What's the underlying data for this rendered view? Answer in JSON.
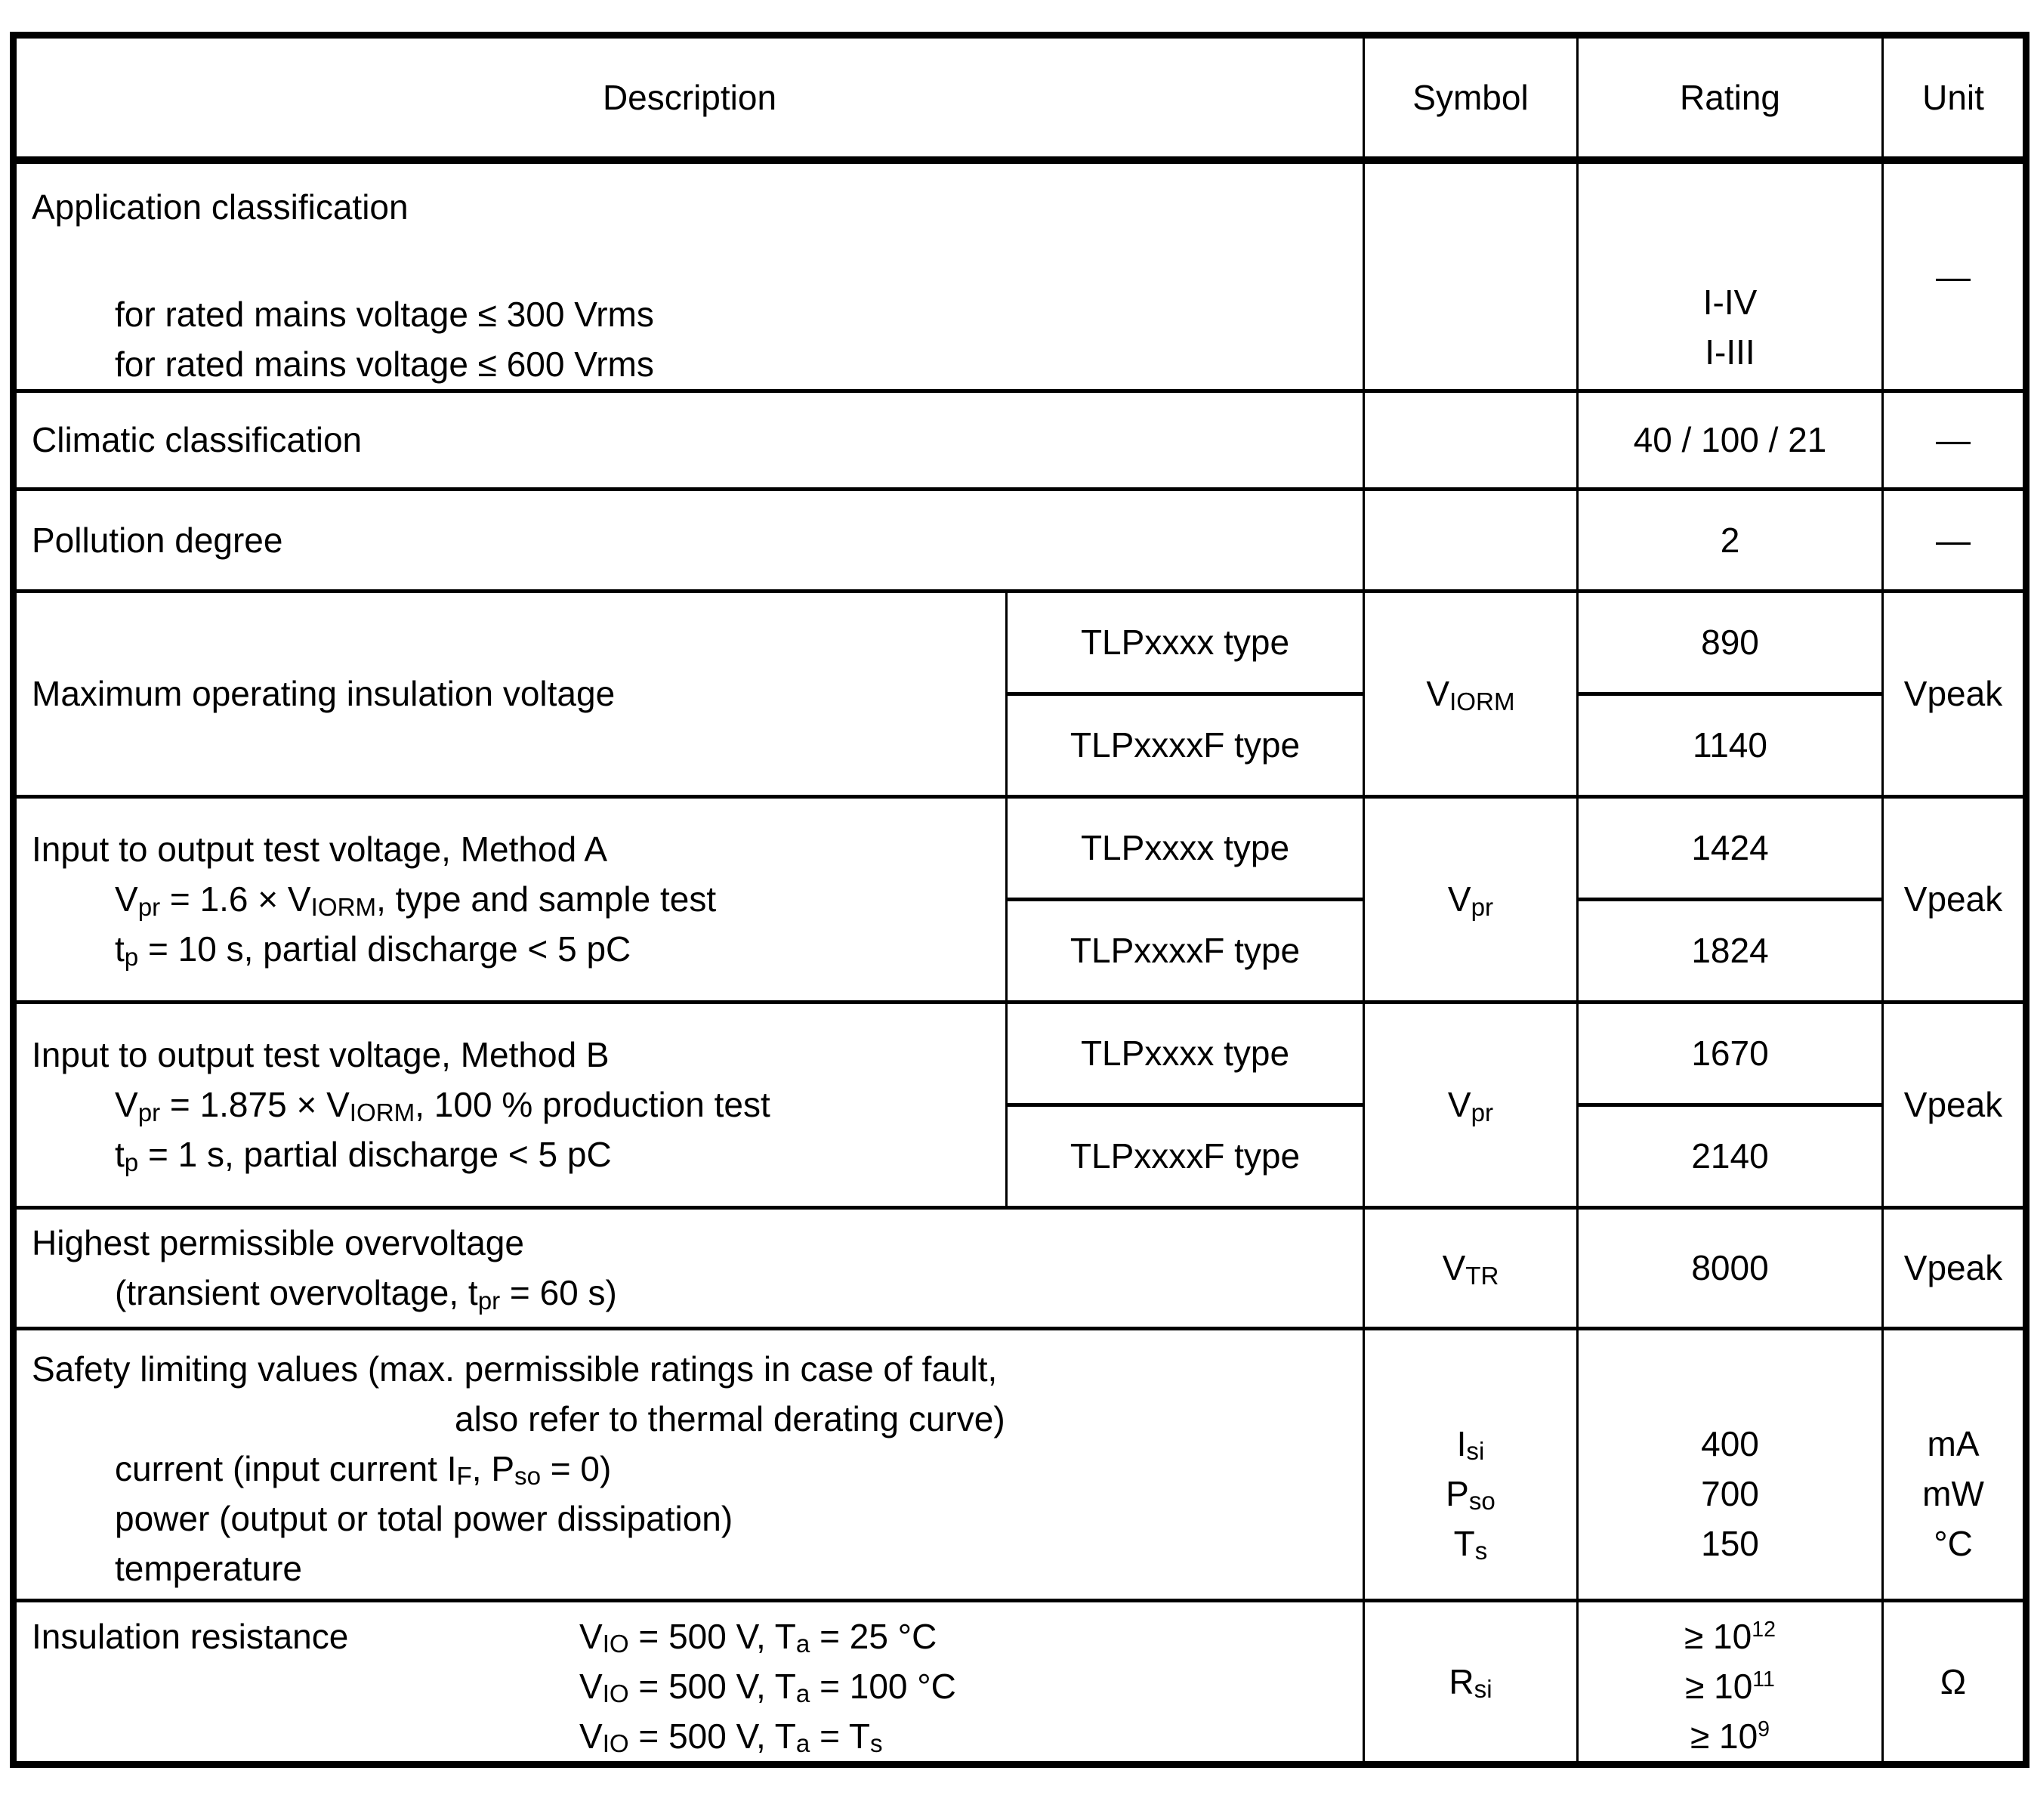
{
  "table": {
    "header": {
      "description": "Description",
      "symbol": "Symbol",
      "rating": "Rating",
      "unit": "Unit"
    },
    "application": {
      "title": "Application classification",
      "line_300": "for rated mains voltage ≤ 300 Vrms",
      "line_600": "for rated mains voltage ≤ 600 Vrms",
      "rating_300": "I-IV",
      "rating_600": "I-III",
      "unit": "—"
    },
    "climatic": {
      "title": "Climatic classification",
      "rating": "40 / 100 / 21",
      "unit": "—"
    },
    "pollution": {
      "title": "Pollution degree",
      "rating": "2",
      "unit": "—"
    },
    "viorm": {
      "title": "Maximum operating insulation voltage",
      "type_standard": "TLPxxxx type",
      "type_f": "TLPxxxxF type",
      "symbol": [
        {
          "t": "V"
        },
        {
          "sub": "IORM"
        }
      ],
      "rating_standard": "890",
      "rating_f": "1140",
      "unit": "Vpeak"
    },
    "method_a": {
      "title": "Input to output test voltage, Method A",
      "condition1": [
        {
          "t": "V"
        },
        {
          "sub": "pr"
        },
        {
          "t": " = 1.6 × V"
        },
        {
          "sub": "IORM"
        },
        {
          "t": ", type and sample test"
        }
      ],
      "condition2": [
        {
          "t": "t"
        },
        {
          "sub": "p"
        },
        {
          "t": " = 10 s, partial discharge < 5 pC"
        }
      ],
      "type_standard": "TLPxxxx type",
      "type_f": "TLPxxxxF type",
      "symbol": [
        {
          "t": "V"
        },
        {
          "sub": "pr"
        }
      ],
      "rating_standard": "1424",
      "rating_f": "1824",
      "unit": "Vpeak"
    },
    "method_b": {
      "title": "Input to output test voltage, Method B",
      "condition1": [
        {
          "t": "V"
        },
        {
          "sub": "pr"
        },
        {
          "t": " = 1.875 × V"
        },
        {
          "sub": "IORM"
        },
        {
          "t": ", 100 % production test"
        }
      ],
      "condition2": [
        {
          "t": "t"
        },
        {
          "sub": "p"
        },
        {
          "t": " = 1 s, partial discharge < 5 pC"
        }
      ],
      "type_standard": "TLPxxxx type",
      "type_f": "TLPxxxxF type",
      "symbol": [
        {
          "t": "V"
        },
        {
          "sub": "pr"
        }
      ],
      "rating_standard": "1670",
      "rating_f": "2140",
      "unit": "Vpeak"
    },
    "overvoltage": {
      "title": "Highest permissible overvoltage",
      "condition": [
        {
          "t": "(transient overvoltage, t"
        },
        {
          "sub": "pr"
        },
        {
          "t": " = 60 s)"
        }
      ],
      "symbol": [
        {
          "t": "V"
        },
        {
          "sub": "TR"
        }
      ],
      "rating": "8000",
      "unit": "Vpeak"
    },
    "safety": {
      "title_line1": "Safety limiting values (max. permissible ratings in case of fault,",
      "title_line2": "also refer to thermal derating curve)",
      "item_current": [
        {
          "t": "current (input current I"
        },
        {
          "sub": "F"
        },
        {
          "t": ", P"
        },
        {
          "sub": "so"
        },
        {
          "t": " = 0)"
        }
      ],
      "item_power": "power (output or total power dissipation)",
      "item_temperature": "temperature",
      "symbol_current": [
        {
          "t": "I"
        },
        {
          "sub": "si"
        }
      ],
      "symbol_power": [
        {
          "t": "P"
        },
        {
          "sub": "so"
        }
      ],
      "symbol_temperature": [
        {
          "t": "T"
        },
        {
          "sub": "s"
        }
      ],
      "rating_current": "400",
      "rating_power": "700",
      "rating_temperature": "150",
      "unit_current": "mA",
      "unit_power": "mW",
      "unit_temperature": "°C"
    },
    "insulation": {
      "title": "Insulation resistance",
      "condition_25": [
        {
          "t": "V"
        },
        {
          "sub": "IO"
        },
        {
          "t": " = 500 V, T"
        },
        {
          "sub": "a"
        },
        {
          "t": " = 25 °C"
        }
      ],
      "condition_100": [
        {
          "t": "V"
        },
        {
          "sub": "IO"
        },
        {
          "t": " = 500 V, T"
        },
        {
          "sub": "a"
        },
        {
          "t": " = 100 °C"
        }
      ],
      "condition_ts": [
        {
          "t": "V"
        },
        {
          "sub": "IO"
        },
        {
          "t": " = 500 V, T"
        },
        {
          "sub": "a"
        },
        {
          "t": " = T"
        },
        {
          "sub": "s"
        }
      ],
      "symbol": [
        {
          "t": "R"
        },
        {
          "sub": "si"
        }
      ],
      "rating_25": [
        {
          "t": "≥ 10"
        },
        {
          "sup": "12"
        }
      ],
      "rating_100": [
        {
          "t": "≥ 10"
        },
        {
          "sup": "11"
        }
      ],
      "rating_ts": [
        {
          "t": "≥ 10"
        },
        {
          "sup": "9"
        }
      ],
      "unit": "Ω"
    }
  }
}
